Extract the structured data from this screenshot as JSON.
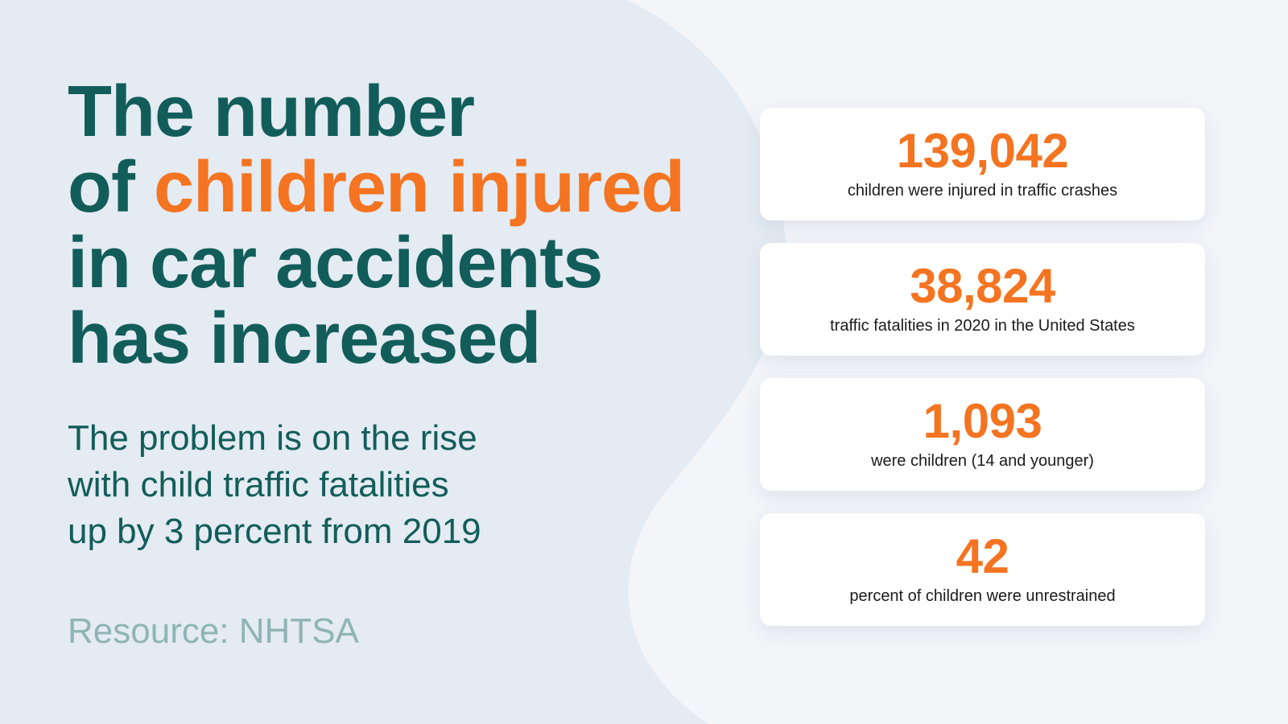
{
  "colors": {
    "page_background": "#f3f5f9",
    "left_panel": "#e4ebf3",
    "heading_teal": "#125d5a",
    "accent_orange": "#f47421",
    "source_gray": "#8fb4b6",
    "card_background": "#ffffff",
    "card_text": "#1b1b1b"
  },
  "headline": {
    "line1": "The number",
    "line2_prefix": "of ",
    "line2_accent": "children injured",
    "line3": "in car accidents",
    "line4": "has increased"
  },
  "subtext": {
    "line1": "The problem is on the rise",
    "line2": "with child traffic fatalities",
    "line3": "up by 3 percent from 2019"
  },
  "source": "Resource: NHTSA",
  "stats": [
    {
      "value": "139,042",
      "label": "children were injured in traffic crashes"
    },
    {
      "value": "38,824",
      "label": "traffic fatalities in 2020 in the United States"
    },
    {
      "value": "1,093",
      "label": "were children (14 and younger)"
    },
    {
      "value": "42",
      "label": "percent of children were unrestrained"
    }
  ]
}
